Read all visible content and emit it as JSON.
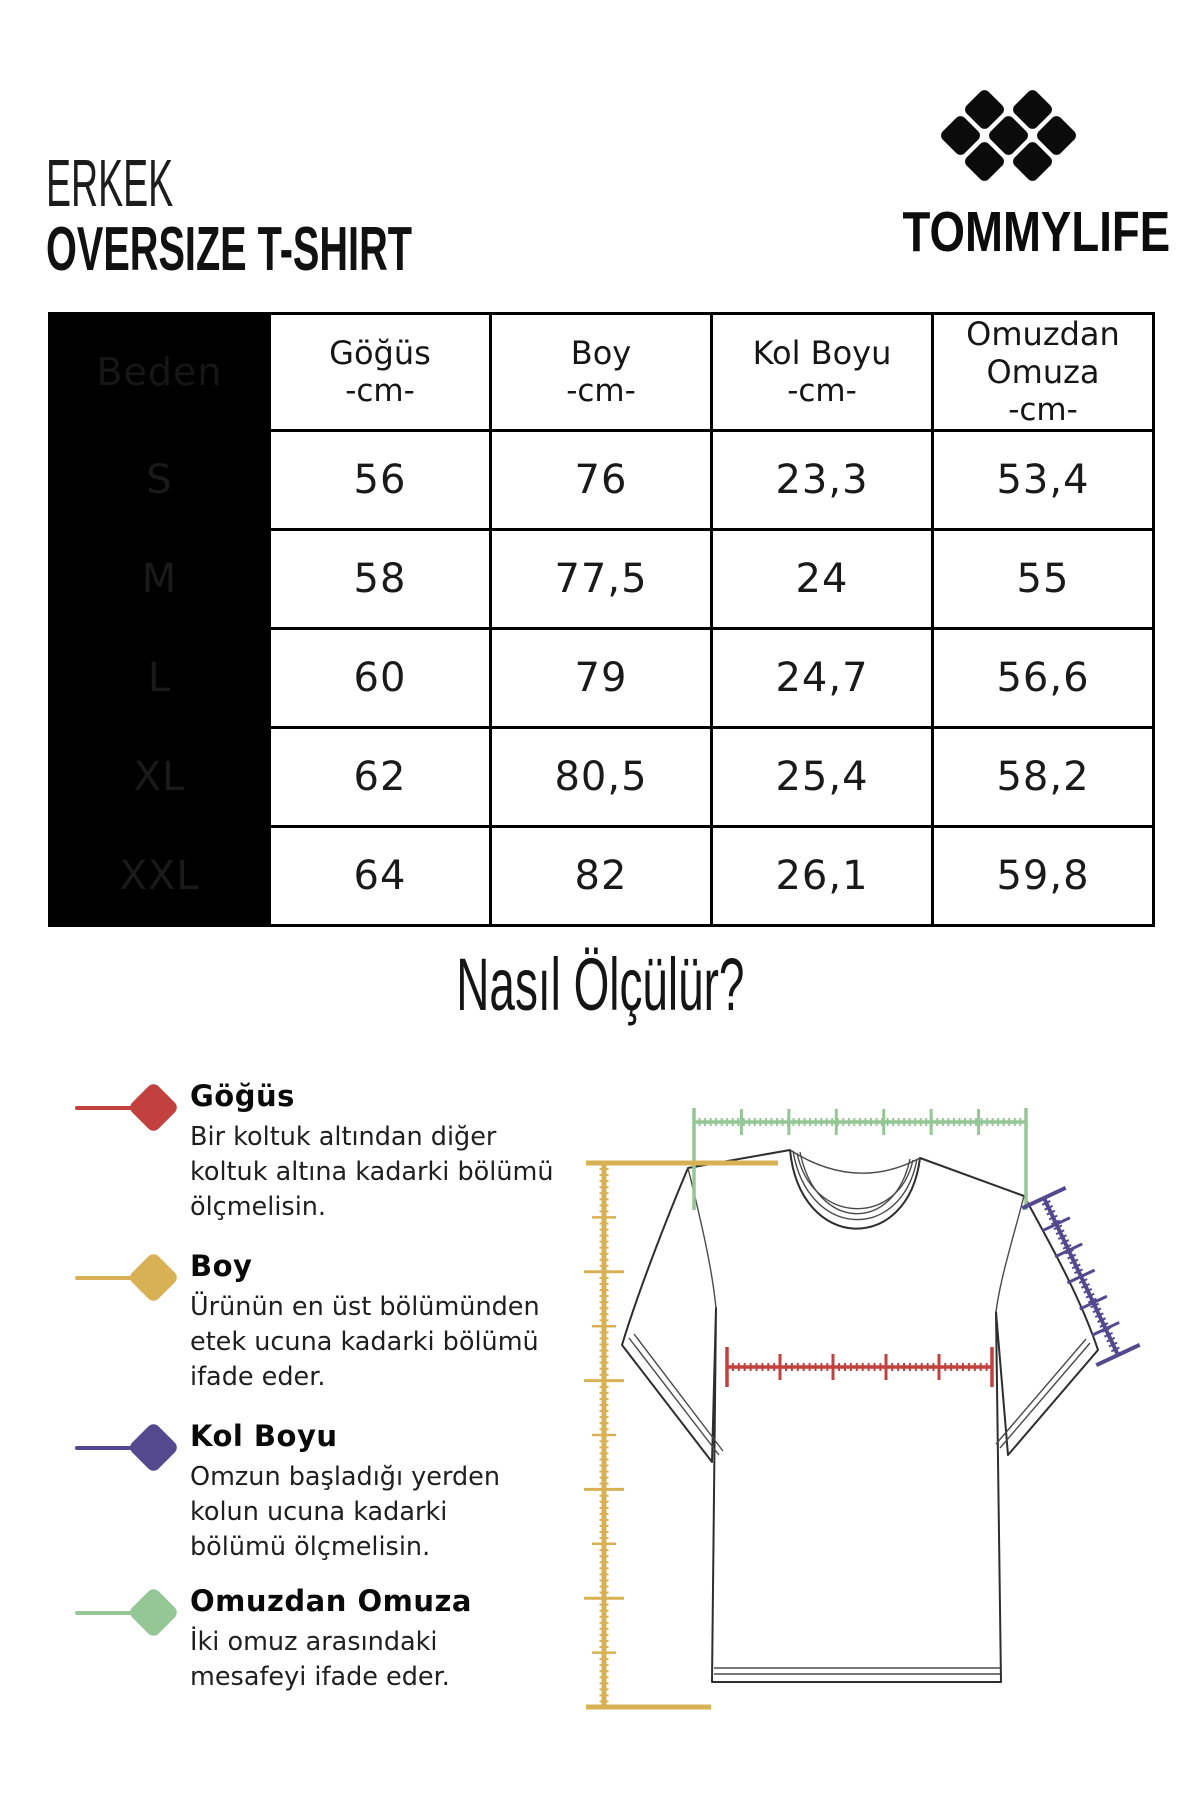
{
  "header": {
    "category": "ERKEK",
    "product": "OVERSIZE T-SHIRT",
    "brand": "TOMMYLIFE"
  },
  "size_table": {
    "size_column_label": "Beden",
    "columns": [
      {
        "label": "Göğüs",
        "unit": "-cm-"
      },
      {
        "label": "Boy",
        "unit": "-cm-"
      },
      {
        "label": "Kol Boyu",
        "unit": "-cm-"
      },
      {
        "label": "Omuzdan Omuza",
        "unit": "-cm-"
      }
    ],
    "rows": [
      {
        "size": "S",
        "chest": "56",
        "length": "76",
        "sleeve": "23,3",
        "shoulder": "53,4"
      },
      {
        "size": "M",
        "chest": "58",
        "length": "77,5",
        "sleeve": "24",
        "shoulder": "55"
      },
      {
        "size": "L",
        "chest": "60",
        "length": "79",
        "sleeve": "24,7",
        "shoulder": "56,6"
      },
      {
        "size": "XL",
        "chest": "62",
        "length": "80,5",
        "sleeve": "25,4",
        "shoulder": "58,2"
      },
      {
        "size": "XXL",
        "chest": "64",
        "length": "82",
        "sleeve": "26,1",
        "shoulder": "59,8"
      }
    ]
  },
  "how_to_measure": {
    "title": "Nasıl Ölçülür?",
    "items": [
      {
        "name": "Göğüs",
        "description": "Bir koltuk altından diğer koltuk altına kadarki bölümü ölçmelisin.",
        "color": "#c2413e"
      },
      {
        "name": "Boy",
        "description": "Ürünün en üst bölümünden etek ucuna kadarki bölümü ifade eder.",
        "color": "#d9b155"
      },
      {
        "name": "Kol Boyu",
        "description": "Omzun başladığı yerden kolun ucuna kadarki bölümü ölçmelisin.",
        "color": "#54498f"
      },
      {
        "name": "Omuzdan Omuza",
        "description": "İki omuz arasındaki mesafeyi ifade eder.",
        "color": "#94c795"
      }
    ]
  },
  "colors": {
    "chest": "#c2413e",
    "length": "#d9b155",
    "sleeve": "#54498f",
    "shoulder": "#94c795",
    "ink": "#0d0d0d"
  }
}
